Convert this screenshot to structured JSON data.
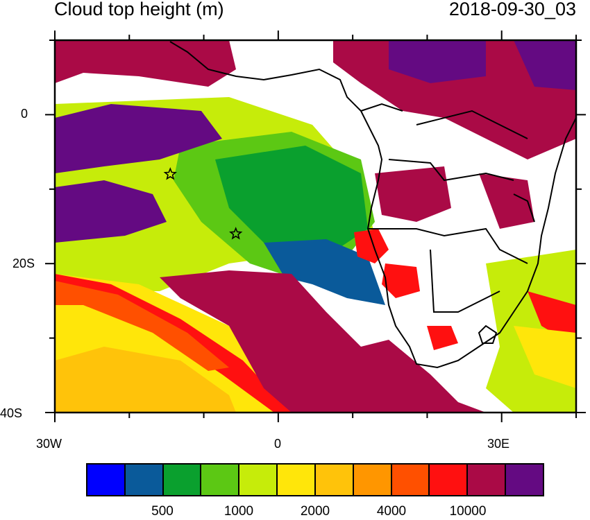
{
  "title": "Cloud top height (m)",
  "timestamp": "2018-09-30_03",
  "axes": {
    "x_ticks": [
      {
        "value": -30,
        "label": "30W"
      },
      {
        "value": 0,
        "label": "0"
      },
      {
        "value": 30,
        "label": "30E"
      }
    ],
    "y_ticks": [
      {
        "value": 0,
        "label": "0"
      },
      {
        "value": -20,
        "label": "20S"
      },
      {
        "value": -40,
        "label": "40S"
      }
    ],
    "lon_range": [
      -30,
      40
    ],
    "lat_range": [
      -40,
      10
    ]
  },
  "markers": [
    {
      "name": "star-marker",
      "lon": -14.5,
      "lat": -8
    },
    {
      "name": "star-marker",
      "lon": -5.7,
      "lat": -16
    }
  ],
  "colorbar": {
    "colors": [
      "#0000ff",
      "#0a5a9a",
      "#0aa02e",
      "#5cc814",
      "#c6ec0a",
      "#ffe60a",
      "#ffc30a",
      "#ff9600",
      "#ff5000",
      "#ff1010",
      "#aa0a46",
      "#640a82"
    ],
    "labels": [
      "500",
      "1000",
      "2000",
      "4000",
      "10000"
    ]
  }
}
